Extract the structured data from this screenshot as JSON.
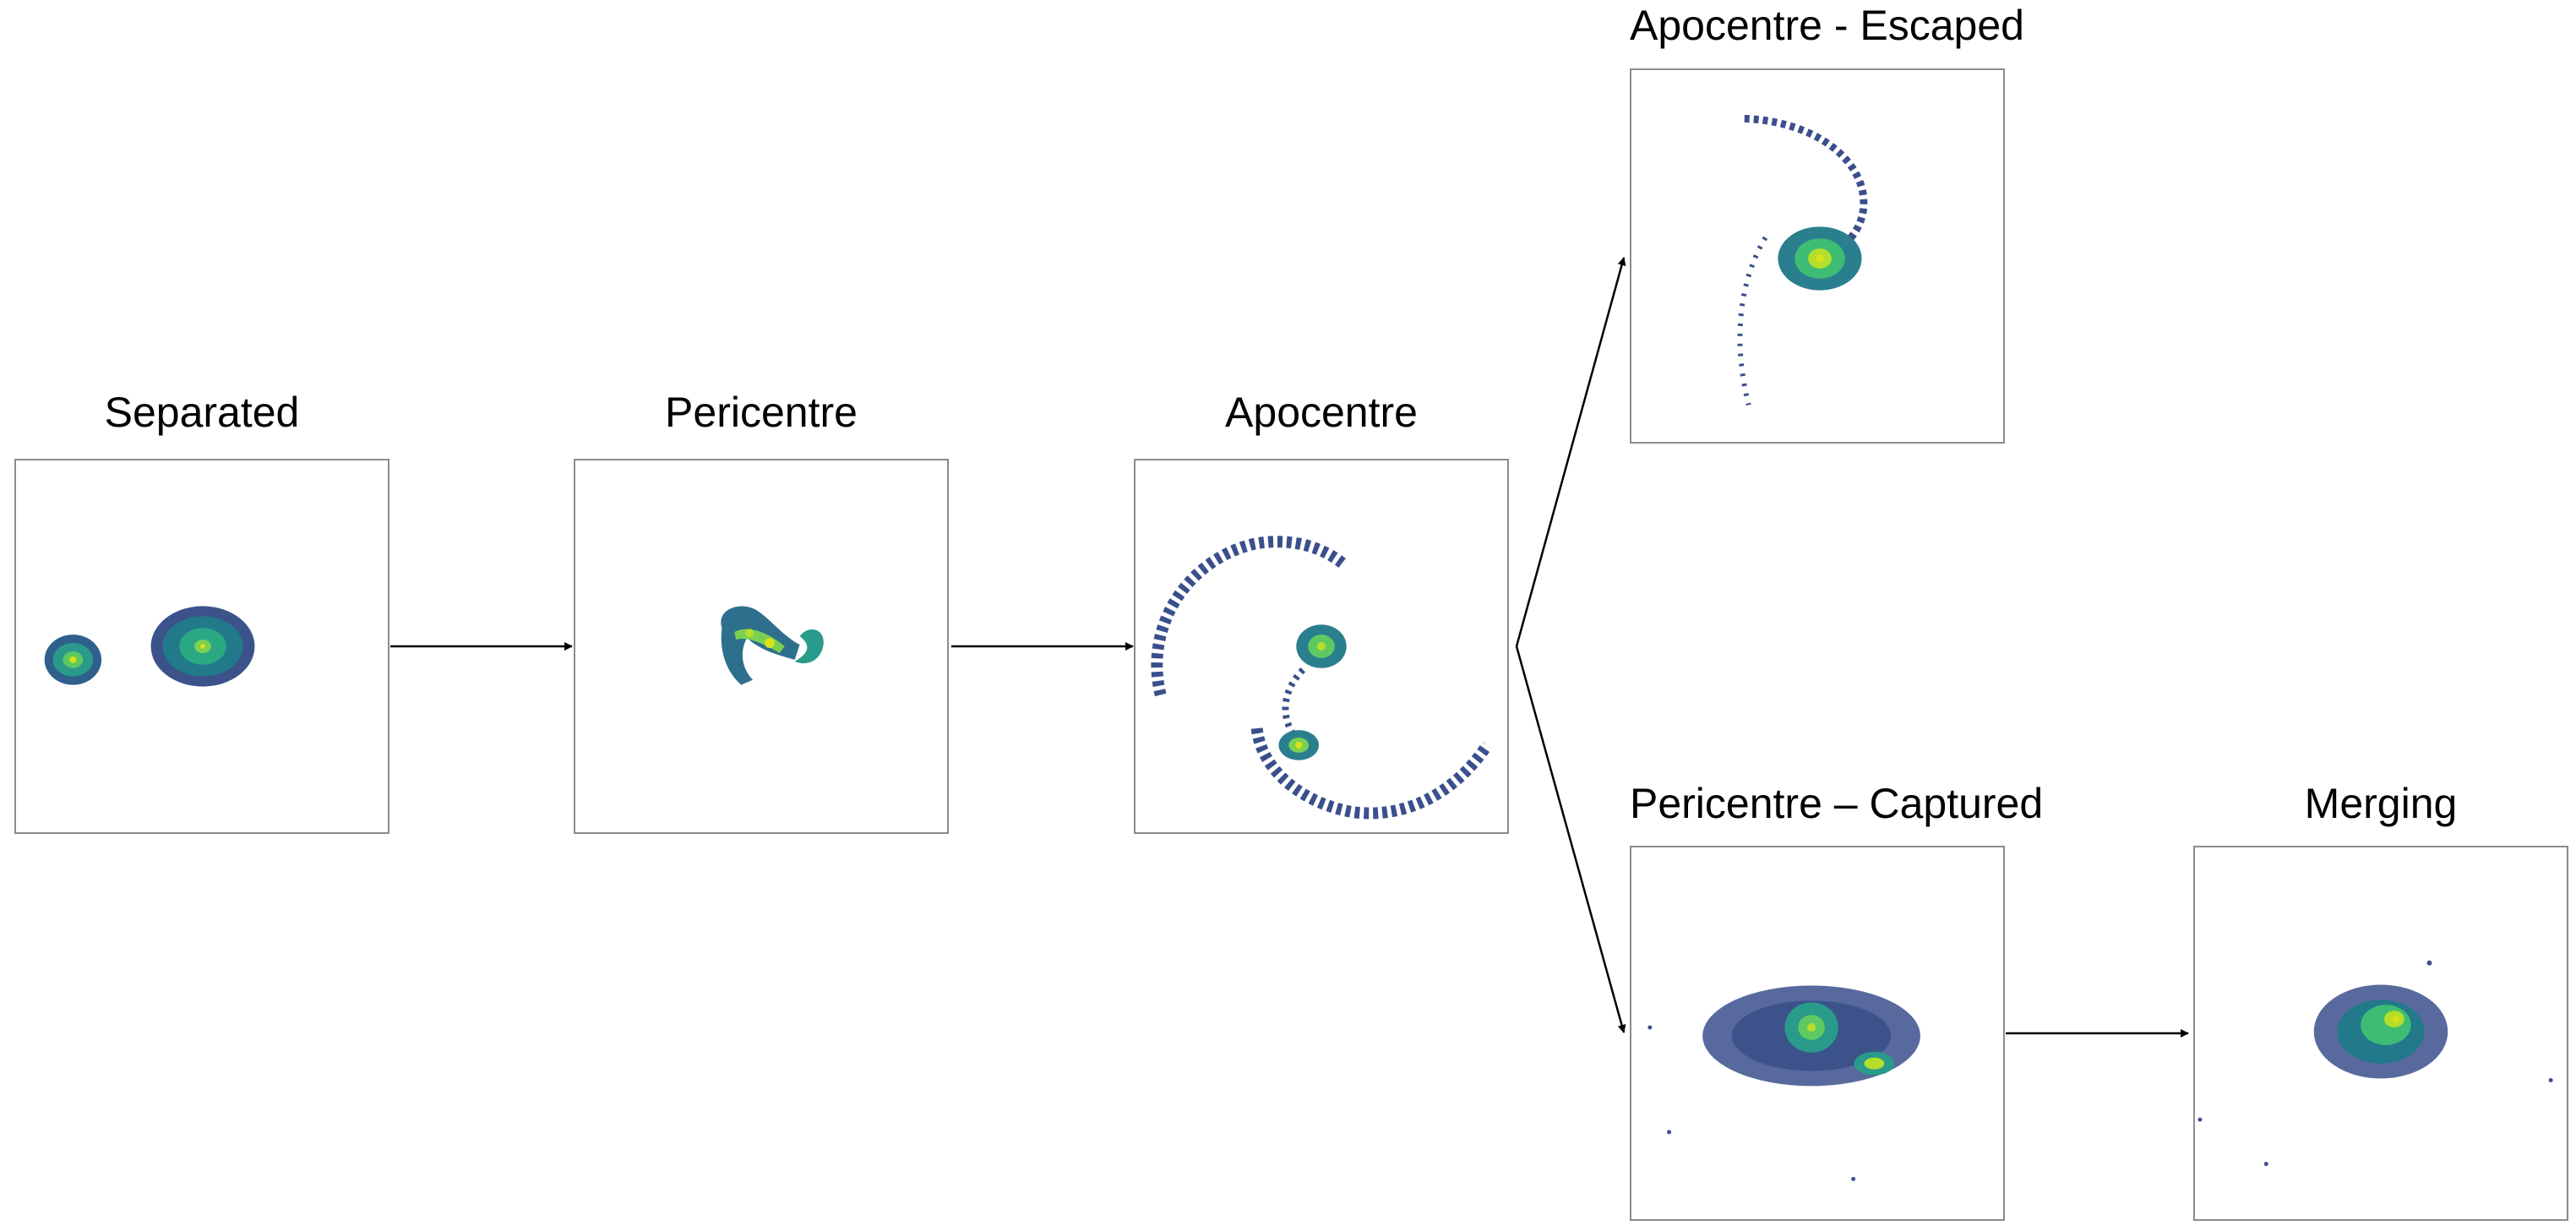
{
  "stages": [
    {
      "id": "separated",
      "title": "Separated"
    },
    {
      "id": "pericentre",
      "title": "Pericentre"
    },
    {
      "id": "apocentre",
      "title": "Apocentre"
    },
    {
      "id": "apocentre-escaped",
      "title": "Apocentre - Escaped"
    },
    {
      "id": "pericentre-captured",
      "title": "Pericentre – Captured"
    },
    {
      "id": "merging",
      "title": "Merging"
    }
  ],
  "flow": [
    {
      "from": "separated",
      "to": "pericentre"
    },
    {
      "from": "pericentre",
      "to": "apocentre"
    },
    {
      "from": "apocentre",
      "to": "apocentre-escaped"
    },
    {
      "from": "apocentre",
      "to": "pericentre-captured"
    },
    {
      "from": "pericentre-captured",
      "to": "merging"
    }
  ],
  "colors": {
    "low_density": "#3b4f8c",
    "mid_density": "#2a9a8a",
    "high_density": "#5ec962",
    "peak_density": "#d8e219",
    "frame": "#8c8c8c",
    "arrow": "#000000"
  }
}
